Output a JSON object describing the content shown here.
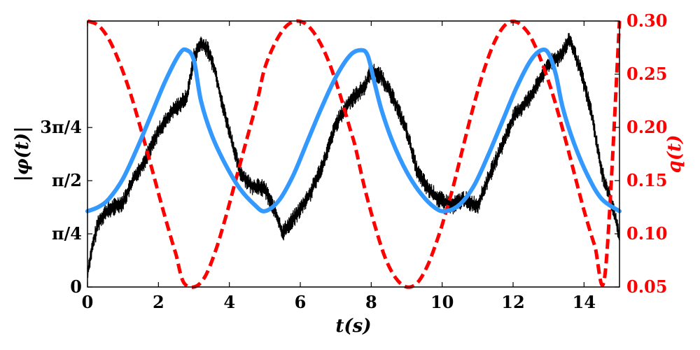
{
  "chart_data": {
    "type": "line",
    "xlabel": "t(s)",
    "ylabel_left": "|φ(t)|",
    "ylabel_right": "q(t)",
    "xlim": [
      0,
      15
    ],
    "ylim_left": [
      0,
      3.93
    ],
    "ylim_right": [
      0.05,
      0.3
    ],
    "x_ticks": [
      0,
      2,
      4,
      6,
      8,
      10,
      12,
      14
    ],
    "x_tick_labels": [
      "0",
      "2",
      "4",
      "6",
      "8",
      "10",
      "12",
      "14"
    ],
    "y_left_ticks": [
      0,
      0.7854,
      1.5708,
      2.3562
    ],
    "y_left_tick_labels": [
      "0",
      "π/4",
      "π/2",
      "3π/4"
    ],
    "y_right_ticks": [
      0.05,
      0.1,
      0.15,
      0.2,
      0.25,
      0.3
    ],
    "y_right_tick_labels": [
      "0.05",
      "0.10",
      "0.15",
      "0.20",
      "0.25",
      "0.30"
    ],
    "grid": false,
    "series": [
      {
        "role": "measured",
        "axis": "left",
        "style": "noisy-solid",
        "color": "#000000",
        "x": [
          0,
          0.1,
          0.3,
          0.5,
          0.8,
          1.0,
          1.3,
          1.6,
          2.0,
          2.4,
          2.8,
          3.0,
          3.2,
          3.4,
          3.6,
          3.8,
          4.0,
          4.3,
          4.6,
          5.0,
          5.3,
          5.5,
          5.8,
          6.0,
          6.3,
          6.7,
          7.0,
          7.4,
          7.8,
          8.0,
          8.3,
          8.7,
          9.0,
          9.3,
          9.6,
          9.9,
          10.3,
          10.6,
          11.0,
          11.3,
          11.7,
          12.0,
          12.4,
          12.7,
          13.0,
          13.3,
          13.6,
          13.9,
          14.2,
          14.5,
          14.8,
          15.0
        ],
        "y": [
          0.2,
          0.5,
          0.95,
          1.1,
          1.2,
          1.25,
          1.6,
          1.85,
          2.3,
          2.6,
          2.8,
          3.4,
          3.6,
          3.5,
          3.2,
          2.7,
          2.3,
          1.7,
          1.5,
          1.45,
          1.1,
          0.8,
          1.0,
          1.15,
          1.4,
          1.9,
          2.4,
          2.75,
          2.95,
          3.2,
          3.1,
          2.7,
          2.3,
          1.7,
          1.45,
          1.3,
          1.2,
          1.3,
          1.2,
          1.6,
          2.1,
          2.5,
          2.75,
          3.0,
          3.3,
          3.4,
          3.65,
          3.2,
          2.6,
          1.7,
          1.2,
          0.75
        ]
      },
      {
        "role": "model",
        "axis": "left",
        "style": "thick-solid",
        "color": "#3399ff",
        "x": [
          0,
          0.3,
          0.6,
          1.0,
          1.4,
          1.8,
          2.2,
          2.6,
          2.8,
          3.0,
          3.2,
          3.5,
          3.9,
          4.3,
          4.7,
          5.0,
          5.4,
          5.8,
          6.2,
          6.6,
          7.0,
          7.4,
          7.7,
          7.9,
          8.1,
          8.3,
          8.6,
          9.0,
          9.4,
          9.8,
          10.1,
          10.5,
          10.9,
          11.3,
          11.7,
          12.1,
          12.5,
          12.8,
          13.0,
          13.2,
          13.4,
          13.7,
          14.1,
          14.5,
          15.0
        ],
        "y": [
          1.12,
          1.18,
          1.3,
          1.6,
          2.05,
          2.55,
          3.05,
          3.45,
          3.5,
          3.35,
          2.75,
          2.25,
          1.8,
          1.45,
          1.22,
          1.12,
          1.28,
          1.65,
          2.15,
          2.65,
          3.1,
          3.42,
          3.5,
          3.42,
          3.0,
          2.6,
          2.15,
          1.7,
          1.38,
          1.17,
          1.12,
          1.22,
          1.5,
          1.95,
          2.45,
          2.95,
          3.35,
          3.5,
          3.45,
          3.15,
          2.65,
          2.15,
          1.65,
          1.3,
          1.12
        ]
      },
      {
        "role": "model",
        "axis": "right",
        "style": "dashed",
        "color": "#ff0000",
        "x": [
          0,
          0.3,
          0.6,
          0.9,
          1.2,
          1.5,
          1.8,
          2.1,
          2.4,
          2.5,
          2.7,
          3.0,
          3.3,
          3.6,
          3.9,
          4.2,
          4.5,
          4.8,
          5.0,
          5.3,
          5.6,
          5.9,
          6.2,
          6.5,
          6.8,
          7.1,
          7.4,
          7.55,
          7.8,
          8.1,
          8.4,
          8.7,
          9.0,
          9.3,
          9.6,
          9.9,
          10.05,
          10.3,
          10.6,
          10.9,
          11.2,
          11.5,
          11.8,
          12.1,
          12.4,
          12.6,
          12.8,
          13.1,
          13.4,
          13.7,
          14.0,
          14.3,
          14.6,
          15.0
        ],
        "y": [
          0.3,
          0.296,
          0.283,
          0.261,
          0.233,
          0.199,
          0.163,
          0.126,
          0.091,
          0.08,
          0.055,
          0.05,
          0.059,
          0.083,
          0.116,
          0.153,
          0.19,
          0.227,
          0.256,
          0.28,
          0.295,
          0.3,
          0.296,
          0.283,
          0.262,
          0.233,
          0.199,
          0.182,
          0.145,
          0.108,
          0.077,
          0.058,
          0.05,
          0.054,
          0.071,
          0.098,
          0.114,
          0.143,
          0.183,
          0.222,
          0.256,
          0.282,
          0.297,
          0.299,
          0.29,
          0.278,
          0.262,
          0.233,
          0.198,
          0.16,
          0.122,
          0.089,
          0.064,
          0.3
        ]
      }
    ]
  }
}
